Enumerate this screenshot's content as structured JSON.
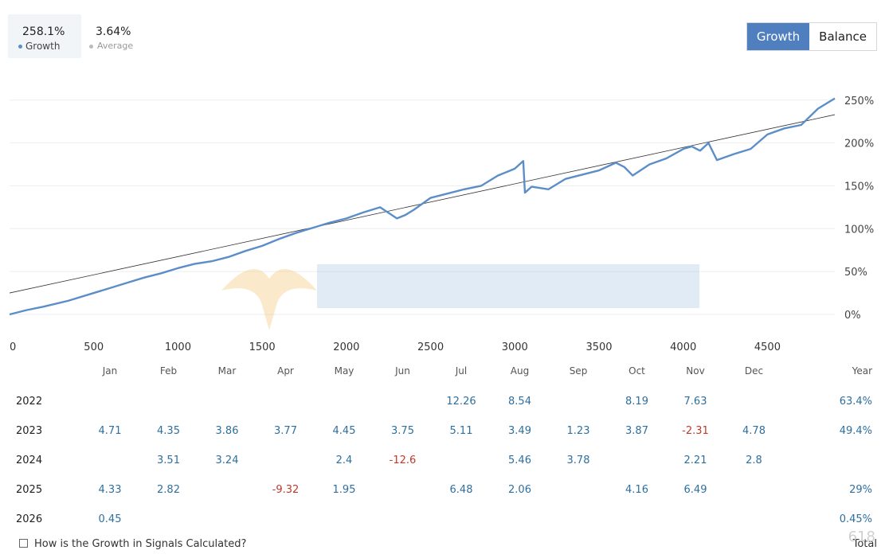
{
  "stats": {
    "growth": {
      "value": "258.1%",
      "label": "Growth"
    },
    "average": {
      "value": "3.64%",
      "label": "Average"
    }
  },
  "toggle": {
    "growth_label": "Growth",
    "balance_label": "Balance",
    "active": "growth"
  },
  "colors": {
    "series": "#5b8ec9",
    "trend": "#333333",
    "positive": "#2f6f9e",
    "negative": "#c0392b",
    "grid": "#eeeeee",
    "accent": "#4f7fbe"
  },
  "chart_data": {
    "type": "line",
    "x_ticks": [
      "0",
      "500",
      "1000",
      "1500",
      "2000",
      "2500",
      "3000",
      "3500",
      "4000",
      "4500"
    ],
    "y_ticks": [
      "0%",
      "50%",
      "100%",
      "150%",
      "200%",
      "250%"
    ],
    "xlim": [
      0,
      4900
    ],
    "ylim": [
      0,
      260
    ],
    "grid": true,
    "series": [
      {
        "x": [
          0,
          100,
          200,
          350,
          500,
          600,
          700,
          800,
          900,
          1000,
          1100,
          1200,
          1300,
          1400,
          1500,
          1600,
          1700,
          1800,
          1900,
          2000,
          2100,
          2200,
          2300,
          2350,
          2400,
          2500,
          2600,
          2700,
          2800,
          2900,
          3000,
          3050,
          3060,
          3100,
          3200,
          3300,
          3400,
          3500,
          3600,
          3650,
          3700,
          3800,
          3900,
          4000,
          4050,
          4100,
          4150,
          4200,
          4300,
          4400,
          4500,
          4600,
          4700,
          4800,
          4900
        ],
        "y": [
          0,
          5,
          9,
          16,
          25,
          31,
          37,
          43,
          48,
          54,
          59,
          62,
          67,
          74,
          80,
          88,
          95,
          101,
          107,
          112,
          119,
          125,
          112,
          116,
          122,
          136,
          141,
          146,
          150,
          162,
          170,
          179,
          142,
          149,
          146,
          158,
          163,
          168,
          177,
          172,
          162,
          175,
          182,
          193,
          196,
          191,
          200,
          180,
          187,
          193,
          210,
          217,
          221,
          240,
          252
        ]
      }
    ],
    "trend": {
      "x": [
        0,
        4900
      ],
      "y": [
        25,
        233
      ]
    }
  },
  "table": {
    "months": [
      "Jan",
      "Feb",
      "Mar",
      "Apr",
      "May",
      "Jun",
      "Jul",
      "Aug",
      "Sep",
      "Oct",
      "Nov",
      "Dec"
    ],
    "year_header": "Year",
    "rows": [
      {
        "year": "2022",
        "cells": [
          "",
          "",
          "",
          "",
          "",
          "",
          "12.26",
          "8.54",
          "",
          "8.19",
          "7.63",
          ""
        ],
        "total": "63.4%"
      },
      {
        "year": "2023",
        "cells": [
          "4.71",
          "4.35",
          "3.86",
          "3.77",
          "4.45",
          "3.75",
          "5.11",
          "3.49",
          "1.23",
          "3.87",
          "-2.31",
          "4.78"
        ],
        "total": "49.4%"
      },
      {
        "year": "2024",
        "cells": [
          "",
          "3.51",
          "3.24",
          "",
          "2.4",
          "-12.6",
          "",
          "5.46",
          "3.78",
          "",
          "2.21",
          "2.8"
        ],
        "total": ""
      },
      {
        "year": "2025",
        "cells": [
          "4.33",
          "2.82",
          "",
          "-9.32",
          "1.95",
          "",
          "6.48",
          "2.06",
          "",
          "4.16",
          "6.49",
          ""
        ],
        "total": "29%"
      },
      {
        "year": "2026",
        "cells": [
          "0.45",
          "",
          "",
          "",
          "",
          "",
          "",
          "",
          "",
          "",
          "",
          ""
        ],
        "total": "0.45%"
      }
    ]
  },
  "footer": {
    "link": "How is the Growth in Signals Calculated?",
    "total": "Total"
  }
}
